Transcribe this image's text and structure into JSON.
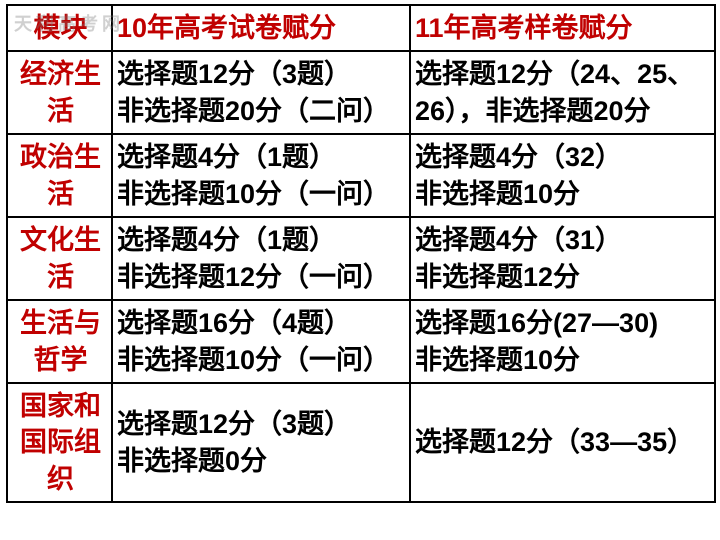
{
  "watermark": "天利高考网",
  "colors": {
    "header_text": "#c00000",
    "module_text": "#c00000",
    "cell_text": "#000000",
    "border": "#000000",
    "background": "#ffffff"
  },
  "columns": {
    "module": "模块",
    "y10": "10年高考试卷赋分",
    "y11": "11年高考样卷赋分"
  },
  "rows": [
    {
      "module": "经济生活",
      "y10": "选择题12分（3题）\n非选择题20分（二问）",
      "y11": "选择题12分（24、25、26），非选择题20分"
    },
    {
      "module": "政治生活",
      "y10": "选择题4分（1题）\n非选择题10分（一问）",
      "y11": "选择题4分（32）\n非选择题10分"
    },
    {
      "module": "文化生活",
      "y10": "选择题4分（1题）\n非选择题12分（一问）",
      "y11": "选择题4分（31）\n非选择题12分"
    },
    {
      "module": "生活与哲学",
      "y10": "选择题16分（4题）\n非选择题10分（一问）",
      "y11": "选择题16分(27—30)\n非选择题10分"
    },
    {
      "module": "国家和国际组织",
      "y10": "选择题12分（3题）\n非选择题0分",
      "y11": "选择题12分（33—35）"
    }
  ]
}
